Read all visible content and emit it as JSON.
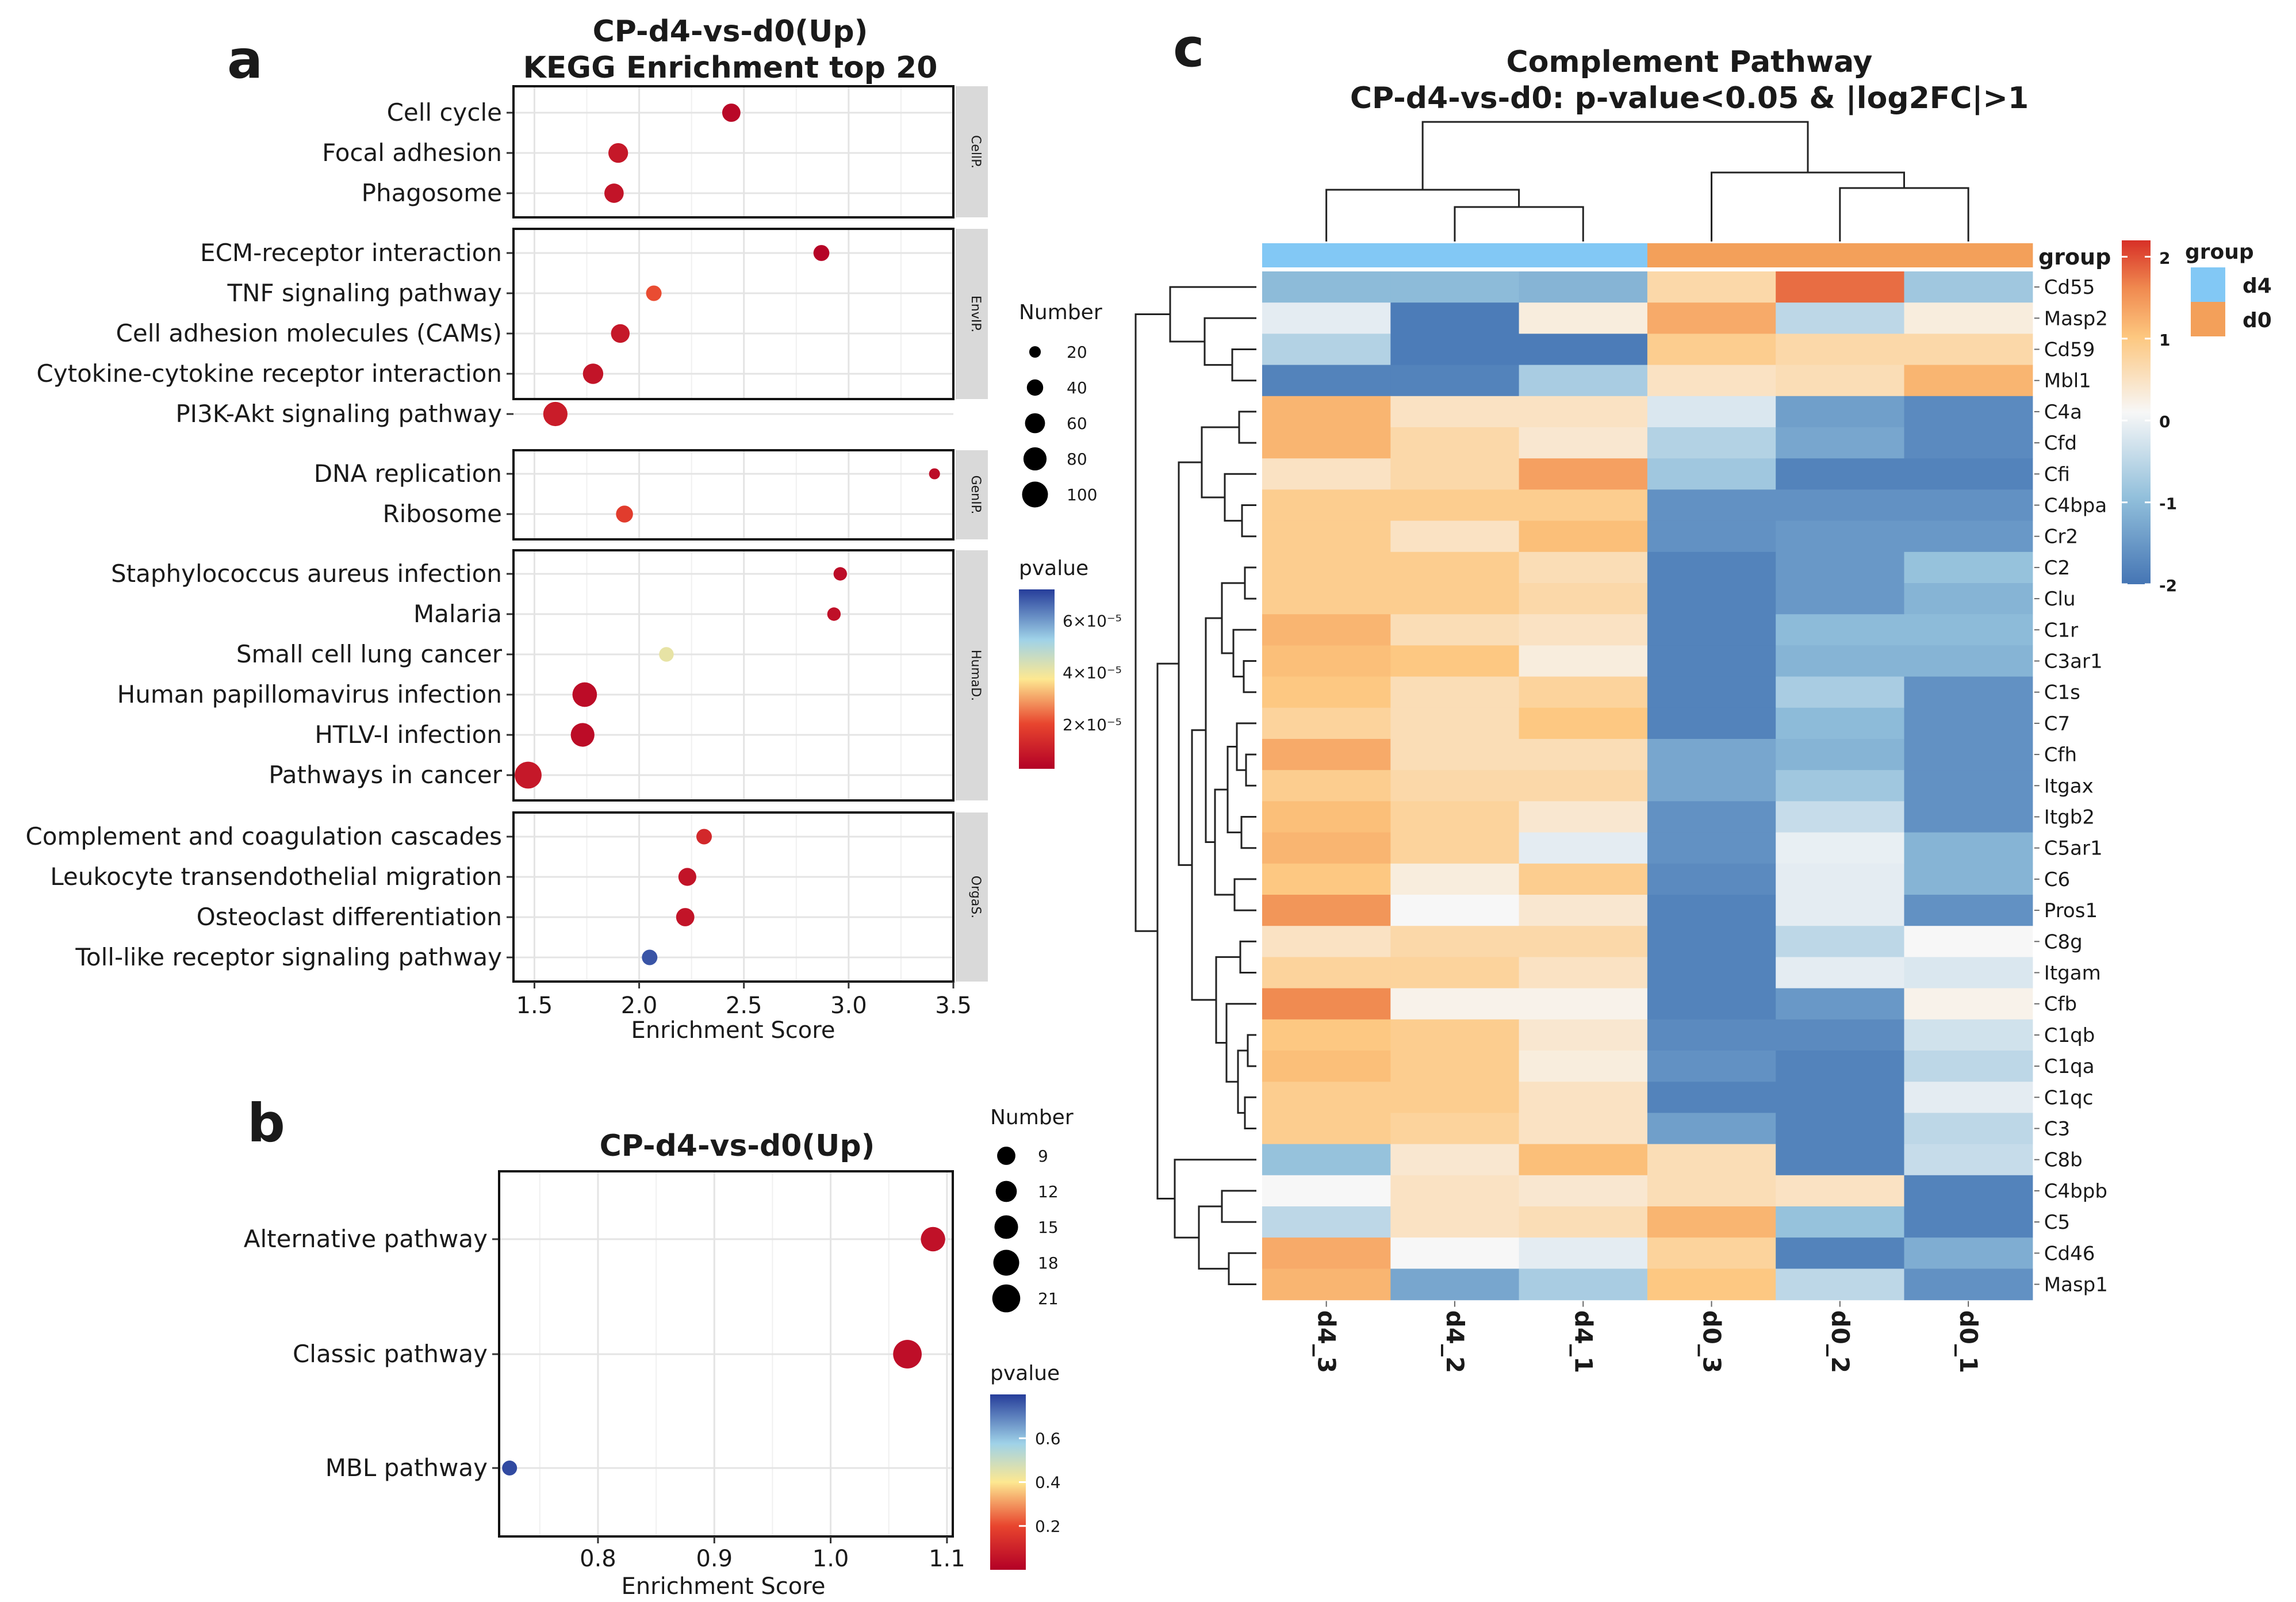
{
  "panel_labels": {
    "a": "a",
    "b": "b",
    "c": "c"
  },
  "colors": {
    "pvalue_low": "#b30026",
    "pvalue_mid": "#fde891",
    "pvalue_high": "#263d9a",
    "heat_high": "#d73027",
    "heat_mid": "#f7f7f7",
    "heat_low": "#4575b4",
    "group_d4": "#82c8f5",
    "group_d0": "#f3a05a"
  },
  "chart_data": [
    {
      "id": "a",
      "type": "scatter",
      "title_line1": "CP-d4-vs-d0(Up)",
      "title_line2": "KEGG Enrichment top 20",
      "xlabel": "Enrichment Score",
      "xlim": [
        1.4,
        3.5
      ],
      "xticks": [
        "1.5",
        "2.0",
        "2.5",
        "3.0",
        "3.5"
      ],
      "xtick_values": [
        1.5,
        2.0,
        2.5,
        3.0,
        3.5
      ],
      "facets": [
        {
          "strip": "CellP.",
          "terms": [
            {
              "term": "Cell cycle",
              "score": 2.44,
              "number": 50,
              "pvalue": 5e-06
            },
            {
              "term": "Focal adhesion",
              "score": 1.9,
              "number": 58,
              "pvalue": 9e-06
            },
            {
              "term": "Phagosome",
              "score": 1.88,
              "number": 56,
              "pvalue": 8e-06
            }
          ]
        },
        {
          "strip": "EnvIP.",
          "terms": [
            {
              "term": "ECM-receptor interaction",
              "score": 2.87,
              "number": 38,
              "pvalue": 4e-06
            },
            {
              "term": "TNF signaling pathway",
              "score": 2.07,
              "number": 36,
              "pvalue": 2.1e-05
            },
            {
              "term": "Cell adhesion molecules (CAMs)",
              "score": 1.91,
              "number": 52,
              "pvalue": 9e-06
            },
            {
              "term": "Cytokine-cytokine receptor interaction",
              "score": 1.78,
              "number": 62,
              "pvalue": 8e-06
            },
            {
              "term": "PI3K-Akt signaling pathway",
              "score": 1.6,
              "number": 88,
              "pvalue": 1e-05
            }
          ]
        },
        {
          "strip": "GenIP.",
          "terms": [
            {
              "term": "DNA replication",
              "score": 3.41,
              "number": 18,
              "pvalue": 6e-06
            },
            {
              "term": "Ribosome",
              "score": 1.93,
              "number": 43,
              "pvalue": 1.8e-05
            }
          ]
        },
        {
          "strip": "HumaD.",
          "terms": [
            {
              "term": "Staphylococcus aureus infection",
              "score": 2.96,
              "number": 27,
              "pvalue": 6e-06
            },
            {
              "term": "Malaria",
              "score": 2.93,
              "number": 27,
              "pvalue": 7e-06
            },
            {
              "term": "Small cell lung cancer",
              "score": 2.13,
              "number": 32,
              "pvalue": 4.1e-05
            },
            {
              "term": "Human papillomavirus infection",
              "score": 1.74,
              "number": 90,
              "pvalue": 6e-06
            },
            {
              "term": "HTLV-I infection",
              "score": 1.73,
              "number": 84,
              "pvalue": 6e-06
            },
            {
              "term": "Pathways in cancer",
              "score": 1.47,
              "number": 108,
              "pvalue": 9e-06
            }
          ]
        },
        {
          "strip": "OrgaS.",
          "terms": [
            {
              "term": "Complement and coagulation cascades",
              "score": 2.31,
              "number": 36,
              "pvalue": 1.3e-05
            },
            {
              "term": "Leukocyte transendothelial migration",
              "score": 2.23,
              "number": 48,
              "pvalue": 8e-06
            },
            {
              "term": "Osteoclast differentiation",
              "score": 2.22,
              "number": 50,
              "pvalue": 8e-06
            },
            {
              "term": "Toll-like receptor signaling pathway",
              "score": 2.05,
              "number": 36,
              "pvalue": 6.9e-05
            }
          ]
        }
      ],
      "size_legend": {
        "title": "Number",
        "values": [
          20,
          40,
          60,
          80,
          100
        ],
        "labels": [
          "20",
          "40",
          "60",
          "80",
          "100"
        ]
      },
      "color_legend": {
        "title": "pvalue",
        "min": 3e-06,
        "max": 7.2e-05,
        "labels": [
          "6×10⁻⁵",
          "4×10⁻⁵",
          "2×10⁻⁵"
        ],
        "label_values": [
          6e-05,
          4e-05,
          2e-05
        ]
      }
    },
    {
      "id": "b",
      "type": "scatter",
      "title": "CP-d4-vs-d0(Up)",
      "xlabel": "Enrichment Score",
      "xlim": [
        0.715,
        1.105
      ],
      "xticks": [
        "0.8",
        "0.9",
        "1.0",
        "1.1"
      ],
      "xtick_values": [
        0.8,
        0.9,
        1.0,
        1.1
      ],
      "terms": [
        {
          "term": "Alternative pathway",
          "score": 1.088,
          "number": 16,
          "pvalue": 0.05
        },
        {
          "term": "Classic pathway",
          "score": 1.066,
          "number": 22,
          "pvalue": 0.04
        },
        {
          "term": "MBL pathway",
          "score": 0.724,
          "number": 6,
          "pvalue": 0.78
        }
      ],
      "size_legend": {
        "title": "Number",
        "values": [
          9,
          12,
          15,
          18,
          21
        ],
        "labels": [
          "9",
          "12",
          "15",
          "18",
          "21"
        ]
      },
      "color_legend": {
        "title": "pvalue",
        "min": 0.0,
        "max": 0.8,
        "labels": [
          "0.6",
          "0.4",
          "0.2"
        ],
        "label_values": [
          0.6,
          0.4,
          0.2
        ]
      }
    },
    {
      "id": "c",
      "type": "heatmap",
      "title_line1": "Complement Pathway",
      "title_line2": "CP-d4-vs-d0: p-value<0.05 & |log2FC|>1",
      "columns": [
        "d4_3",
        "d4_2",
        "d4_1",
        "d0_3",
        "d0_2",
        "d0_1"
      ],
      "column_groups": [
        "d4",
        "d4",
        "d4",
        "d0",
        "d0",
        "d0"
      ],
      "rows": [
        "Cd55",
        "Masp2",
        "Cd59",
        "Mbl1",
        "C4a",
        "Cfd",
        "Cfi",
        "C4bpa",
        "Cr2",
        "C2",
        "Clu",
        "C1r",
        "C3ar1",
        "C1s",
        "C7",
        "Cfh",
        "Itgax",
        "Itgb2",
        "C5ar1",
        "C6",
        "Pros1",
        "C8g",
        "Itgam",
        "Cfb",
        "C1qb",
        "C1qa",
        "C1qc",
        "C3",
        "C8b",
        "C4bpb",
        "C5",
        "Cd46",
        "Masp1"
      ],
      "values": [
        [
          -1.0,
          -1.0,
          -1.1,
          0.7,
          1.8,
          -0.8
        ],
        [
          -0.1,
          -1.9,
          0.3,
          1.3,
          -0.5,
          0.3
        ],
        [
          -0.6,
          -1.9,
          -1.9,
          0.9,
          0.7,
          0.7
        ],
        [
          -1.8,
          -1.8,
          -0.7,
          0.5,
          0.6,
          1.2
        ],
        [
          1.2,
          0.5,
          0.5,
          -0.2,
          -1.4,
          -1.7
        ],
        [
          1.2,
          0.7,
          0.4,
          -0.6,
          -1.3,
          -1.7
        ],
        [
          0.5,
          0.7,
          1.4,
          -0.8,
          -1.8,
          -1.8
        ],
        [
          0.9,
          0.9,
          0.9,
          -1.6,
          -1.6,
          -1.6
        ],
        [
          0.9,
          0.5,
          1.1,
          -1.6,
          -1.5,
          -1.5
        ],
        [
          0.9,
          0.9,
          0.6,
          -1.8,
          -1.5,
          -0.9
        ],
        [
          0.9,
          0.9,
          0.7,
          -1.8,
          -1.5,
          -1.1
        ],
        [
          1.2,
          0.6,
          0.5,
          -1.8,
          -1.0,
          -1.0
        ],
        [
          1.1,
          1.0,
          0.3,
          -1.8,
          -1.1,
          -1.1
        ],
        [
          1.0,
          0.6,
          0.8,
          -1.8,
          -0.7,
          -1.6
        ],
        [
          0.8,
          0.6,
          1.0,
          -1.8,
          -1.0,
          -1.6
        ],
        [
          1.3,
          0.6,
          0.6,
          -1.3,
          -1.1,
          -1.6
        ],
        [
          0.9,
          0.7,
          0.7,
          -1.3,
          -0.8,
          -1.6
        ],
        [
          1.1,
          0.8,
          0.4,
          -1.6,
          -0.4,
          -1.6
        ],
        [
          1.2,
          0.8,
          -0.1,
          -1.6,
          -0.05,
          -1.1
        ],
        [
          1.0,
          0.3,
          0.9,
          -1.7,
          -0.1,
          -1.1
        ],
        [
          1.5,
          0.1,
          0.4,
          -1.8,
          -0.1,
          -1.6
        ],
        [
          0.5,
          0.7,
          0.7,
          -1.8,
          -0.5,
          0.1
        ],
        [
          0.8,
          0.8,
          0.5,
          -1.8,
          -0.1,
          -0.2
        ],
        [
          1.6,
          0.2,
          0.2,
          -1.8,
          -1.5,
          0.2
        ],
        [
          1.0,
          0.9,
          0.4,
          -1.7,
          -1.7,
          -0.3
        ],
        [
          1.1,
          0.9,
          0.3,
          -1.6,
          -1.8,
          -0.5
        ],
        [
          0.9,
          0.9,
          0.5,
          -1.8,
          -1.8,
          -0.1
        ],
        [
          0.9,
          0.8,
          0.5,
          -1.4,
          -1.8,
          -0.5
        ],
        [
          -0.9,
          0.4,
          1.1,
          0.6,
          -1.8,
          -0.4
        ],
        [
          0.1,
          0.5,
          0.4,
          0.6,
          0.5,
          -1.8
        ],
        [
          -0.5,
          0.5,
          0.6,
          1.2,
          -0.9,
          -1.8
        ],
        [
          1.3,
          0.1,
          -0.1,
          0.8,
          -1.8,
          -1.2
        ],
        [
          1.2,
          -1.3,
          -0.7,
          1.0,
          -0.5,
          -1.6
        ]
      ],
      "row_label_header": "group",
      "legend_title": "group",
      "groups": [
        "d4",
        "d0"
      ],
      "colorbar_labels": [
        "2",
        "1",
        "0",
        "-1",
        "-2"
      ],
      "colorbar_values": [
        2,
        1,
        0,
        -1,
        -2
      ],
      "vmin": -2,
      "vmax": 2.2
    }
  ]
}
